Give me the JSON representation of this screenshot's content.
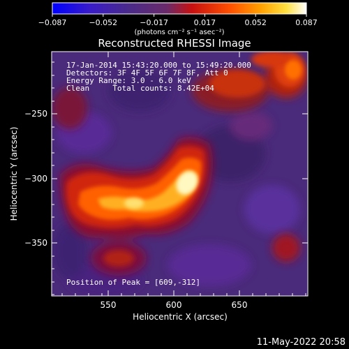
{
  "colorbar": {
    "ticks": [
      "−0.087",
      "−0.052",
      "−0.017",
      "0.017",
      "0.052",
      "0.087"
    ],
    "unit_label": "(photons cm⁻² s⁻¹ asec⁻²)",
    "colors": [
      "#0000ff",
      "#3a1cc8",
      "#4a2a8a",
      "#6a2a6a",
      "#c81010",
      "#ff5000",
      "#ffa000",
      "#ffe040",
      "#ffffff"
    ]
  },
  "title": "Reconstructed RHESSI Image",
  "annotations": {
    "time_range": "17-Jan-2014 15:43:20.000 to 15:49:20.000",
    "detectors": "Detectors: 3F 4F 5F 6F 7F 8F, Att 0",
    "energy_range": "Energy Range: 3.0 - 6.0 keV",
    "clean_counts": "Clean     Total counts: 8.42E+04",
    "peak_position": "Position of Peak = [609,-312]"
  },
  "x_axis": {
    "label": "Heliocentric X (arcsec)",
    "ticks": [
      "550",
      "600",
      "650"
    ]
  },
  "y_axis": {
    "label": "Heliocentric Y (arcsec)",
    "ticks": [
      "−250",
      "−300",
      "−350"
    ]
  },
  "timestamp": "11-May-2022 20:58",
  "image": {
    "background_color": "#4a2a7a",
    "peak": [
      609,
      -312
    ]
  }
}
